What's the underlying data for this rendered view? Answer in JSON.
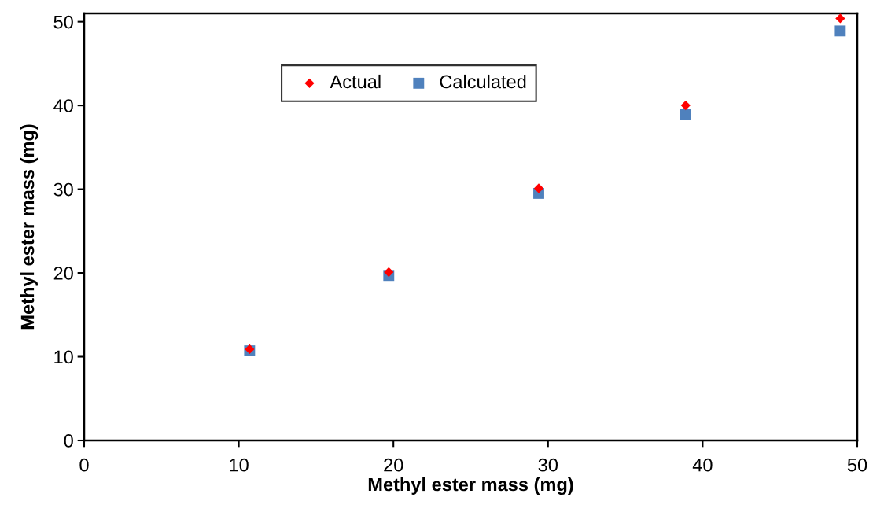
{
  "chart_data": {
    "type": "scatter",
    "xlabel": "Methyl ester mass (mg)",
    "ylabel": "Methyl ester mass (mg)",
    "x": [
      10.7,
      19.7,
      29.4,
      38.9,
      48.9
    ],
    "series": [
      {
        "name": "Actual",
        "color": "#ff0000",
        "marker": "diamond",
        "values": [
          10.9,
          20.1,
          30.1,
          40.0,
          50.4
        ]
      },
      {
        "name": "Calculated",
        "color": "#4f81bd",
        "marker": "square",
        "values": [
          10.7,
          19.7,
          29.5,
          38.9,
          48.9
        ]
      }
    ],
    "xlim": [
      0,
      50
    ],
    "xticks": [
      0,
      10,
      20,
      30,
      40,
      50
    ],
    "ylim": [
      0,
      51
    ],
    "yticks": [
      0,
      10,
      20,
      30,
      40,
      50
    ],
    "grid": false,
    "legend": "top"
  }
}
